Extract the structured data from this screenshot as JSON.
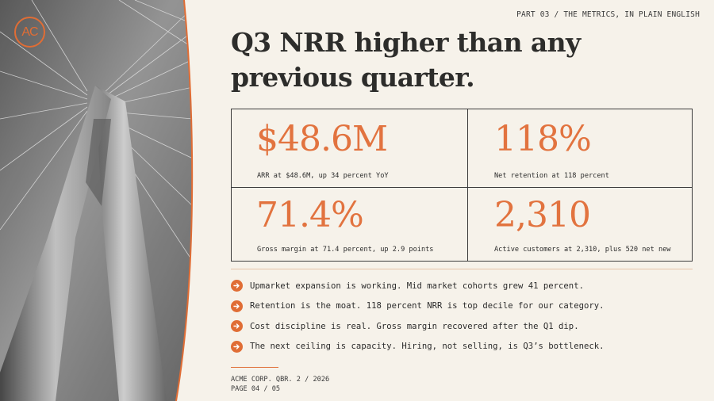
{
  "brand": {
    "logo_text": "AC",
    "accent": "#e06d35"
  },
  "header": {
    "kicker": "PART 03 / THE METRICS, IN PLAIN ENGLISH"
  },
  "title": {
    "line1": "Q3 NRR higher than any",
    "line2": "previous quarter."
  },
  "metrics": [
    {
      "value": "$48.6M",
      "caption": "ARR at $48.6M, up 34 percent YoY"
    },
    {
      "value": "118%",
      "caption": "Net retention at 118 percent"
    },
    {
      "value": "71.4%",
      "caption": "Gross margin at 71.4 percent, up 2.9 points"
    },
    {
      "value": "2,310",
      "caption": "Active customers at 2,310, plus 520 net new"
    }
  ],
  "bullets": [
    {
      "icon": "arrow-right-icon",
      "text": "Upmarket expansion is working. Mid market cohorts grew 41 percent."
    },
    {
      "icon": "arrow-right-icon",
      "text": "Retention is the moat. 118 percent NRR is top decile for our category."
    },
    {
      "icon": "arrow-right-icon",
      "text": "Cost discipline is real. Gross margin recovered after the Q1 dip."
    },
    {
      "icon": "arrow-right-icon",
      "text": "The next ceiling is capacity. Hiring, not selling, is Q3’s bottleneck."
    }
  ],
  "footer": {
    "line1": "ACME CORP. QBR. 2 / 2026",
    "line2": "PAGE 04 / 05"
  }
}
